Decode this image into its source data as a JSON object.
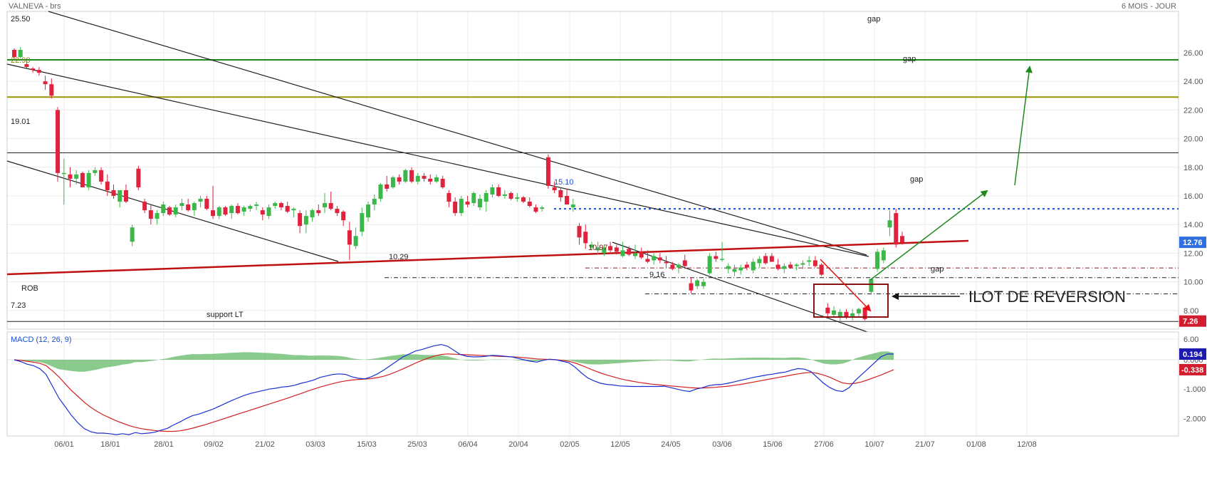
{
  "header": {
    "instrument": "VALNEVA - brs",
    "period": "6 MOIS - JOUR"
  },
  "chart_data": {
    "type": "candlestick",
    "price_axis": {
      "range": [
        4.0,
        26.0
      ],
      "ticks": [
        "26.00",
        "24.00",
        "22.00",
        "20.00",
        "18.00",
        "16.00",
        "14.00",
        "12.00",
        "10.00",
        "8.00",
        "6.00"
      ]
    },
    "date_axis": {
      "ticks": [
        "06/01",
        "18/01",
        "28/01",
        "09/02",
        "21/02",
        "03/03",
        "15/03",
        "25/03",
        "06/04",
        "20/04",
        "02/05",
        "12/05",
        "24/05",
        "03/06",
        "15/06",
        "27/06",
        "10/07",
        "21/07",
        "01/08",
        "12/08"
      ]
    },
    "last_price": "12.76",
    "support_price": "7.26",
    "candles": [
      [
        26.2,
        26.3,
        25.5,
        25.7
      ],
      [
        25.7,
        26.4,
        25.6,
        26.2
      ],
      [
        25.2,
        25.4,
        24.9,
        25.0
      ],
      [
        24.9,
        25.0,
        24.6,
        24.8
      ],
      [
        24.8,
        25.0,
        24.4,
        24.6
      ],
      [
        24.0,
        24.4,
        23.4,
        23.8
      ],
      [
        23.8,
        24.2,
        22.8,
        23.0
      ],
      [
        22.0,
        22.2,
        17.0,
        17.6
      ],
      [
        17.6,
        18.6,
        15.4,
        17.6
      ],
      [
        17.5,
        18.0,
        16.6,
        17.2
      ],
      [
        17.2,
        17.8,
        16.8,
        17.5
      ],
      [
        17.6,
        17.7,
        16.6,
        16.6
      ],
      [
        16.6,
        17.8,
        16.4,
        17.6
      ],
      [
        17.6,
        18.0,
        17.4,
        17.8
      ],
      [
        17.8,
        18.0,
        16.8,
        17.0
      ],
      [
        17.0,
        17.5,
        16.0,
        16.4
      ],
      [
        16.4,
        16.8,
        15.8,
        16.0
      ],
      [
        15.6,
        16.4,
        15.2,
        16.4
      ],
      [
        16.4,
        16.8,
        15.5,
        15.6
      ],
      [
        12.8,
        14.0,
        12.5,
        13.8
      ],
      [
        17.9,
        18.1,
        16.4,
        16.6
      ],
      [
        15.6,
        15.8,
        14.8,
        15.0
      ],
      [
        15.0,
        15.4,
        14.0,
        14.4
      ],
      [
        14.4,
        15.0,
        14.0,
        14.8
      ],
      [
        14.8,
        15.6,
        14.6,
        15.4
      ],
      [
        15.2,
        15.3,
        14.6,
        14.7
      ],
      [
        14.7,
        15.4,
        14.5,
        15.2
      ],
      [
        15.3,
        15.8,
        15.0,
        15.5
      ],
      [
        15.4,
        15.8,
        14.9,
        15.0
      ],
      [
        15.0,
        15.6,
        14.6,
        15.5
      ],
      [
        15.6,
        16.0,
        15.2,
        15.8
      ],
      [
        15.8,
        16.0,
        15.0,
        15.1
      ],
      [
        15.0,
        16.7,
        14.4,
        14.6
      ],
      [
        14.6,
        15.3,
        14.4,
        15.2
      ],
      [
        15.2,
        15.3,
        14.6,
        14.7
      ],
      [
        14.8,
        15.4,
        14.4,
        15.3
      ],
      [
        15.3,
        15.5,
        14.7,
        14.8
      ],
      [
        14.9,
        15.3,
        14.6,
        15.2
      ],
      [
        15.1,
        15.4,
        14.9,
        15.3
      ],
      [
        15.3,
        15.6,
        15.0,
        15.4
      ],
      [
        15.0,
        15.2,
        14.3,
        14.7
      ],
      [
        14.6,
        15.4,
        14.4,
        15.2
      ],
      [
        15.3,
        15.6,
        15.1,
        15.5
      ],
      [
        15.5,
        15.6,
        15.0,
        15.2
      ],
      [
        15.3,
        15.6,
        14.8,
        14.9
      ],
      [
        15.0,
        15.2,
        14.5,
        15.1
      ],
      [
        14.8,
        15.0,
        13.4,
        13.9
      ],
      [
        14.0,
        15.0,
        13.4,
        14.6
      ],
      [
        14.5,
        15.1,
        14.2,
        15.0
      ],
      [
        15.0,
        15.4,
        14.6,
        14.8
      ],
      [
        15.2,
        16.2,
        14.8,
        15.5
      ],
      [
        15.5,
        16.3,
        15.0,
        15.1
      ],
      [
        15.1,
        15.3,
        14.6,
        14.8
      ],
      [
        14.9,
        15.0,
        13.9,
        14.3
      ],
      [
        13.6,
        14.2,
        11.5,
        12.6
      ],
      [
        12.5,
        13.8,
        12.3,
        13.2
      ],
      [
        13.5,
        15.2,
        13.2,
        14.8
      ],
      [
        14.5,
        15.6,
        14.2,
        15.4
      ],
      [
        15.4,
        16.1,
        15.0,
        15.8
      ],
      [
        15.8,
        16.9,
        15.6,
        16.8
      ],
      [
        16.8,
        17.4,
        16.3,
        16.5
      ],
      [
        16.6,
        17.4,
        16.5,
        17.3
      ],
      [
        17.3,
        17.5,
        16.8,
        17.0
      ],
      [
        17.0,
        17.9,
        16.9,
        17.8
      ],
      [
        17.8,
        18.0,
        16.9,
        17.0
      ],
      [
        17.0,
        17.6,
        16.8,
        17.4
      ],
      [
        17.4,
        17.6,
        17.0,
        17.2
      ],
      [
        17.2,
        17.5,
        16.8,
        17.0
      ],
      [
        17.0,
        17.5,
        16.9,
        17.3
      ],
      [
        17.2,
        17.4,
        16.5,
        16.6
      ],
      [
        16.2,
        16.4,
        15.2,
        15.6
      ],
      [
        15.6,
        15.9,
        14.6,
        14.8
      ],
      [
        14.8,
        16.0,
        14.6,
        15.8
      ],
      [
        15.6,
        16.0,
        15.2,
        15.4
      ],
      [
        15.5,
        16.3,
        15.3,
        16.2
      ],
      [
        15.2,
        16.1,
        15.0,
        15.8
      ],
      [
        15.6,
        16.4,
        14.9,
        16.2
      ],
      [
        16.1,
        16.8,
        15.9,
        16.6
      ],
      [
        16.6,
        16.8,
        15.9,
        16.0
      ],
      [
        16.0,
        16.4,
        15.8,
        16.1
      ],
      [
        16.2,
        16.3,
        15.7,
        15.8
      ],
      [
        15.8,
        16.2,
        15.6,
        15.9
      ],
      [
        15.9,
        16.0,
        15.5,
        15.6
      ],
      [
        15.6,
        15.9,
        15.2,
        15.3
      ],
      [
        15.2,
        15.4,
        14.8,
        14.9
      ],
      [
        15.1,
        15.3,
        14.9,
        15.2
      ],
      [
        18.7,
        18.9,
        16.5,
        16.7
      ],
      [
        16.6,
        17.0,
        16.2,
        16.4
      ],
      [
        16.4,
        16.6,
        15.6,
        15.9
      ],
      [
        16.0,
        16.5,
        15.4,
        15.4
      ],
      [
        15.2,
        15.8,
        14.9,
        15.4
      ],
      [
        13.9,
        14.1,
        12.6,
        13.1
      ],
      [
        13.5,
        14.0,
        12.3,
        12.7
      ],
      [
        12.4,
        12.8,
        12.2,
        12.6
      ],
      [
        12.2,
        12.8,
        11.9,
        12.4
      ],
      [
        12.0,
        12.6,
        11.8,
        12.4
      ],
      [
        12.5,
        12.8,
        12.0,
        12.2
      ],
      [
        12.4,
        12.6,
        11.9,
        12.1
      ],
      [
        11.8,
        12.8,
        11.7,
        12.2
      ],
      [
        12.3,
        12.5,
        11.8,
        11.9
      ],
      [
        11.8,
        12.6,
        11.6,
        12.0
      ],
      [
        12.1,
        12.4,
        11.6,
        11.7
      ],
      [
        11.6,
        12.2,
        11.3,
        11.4
      ],
      [
        11.5,
        12.0,
        11.2,
        11.8
      ],
      [
        11.7,
        12.0,
        11.3,
        11.5
      ],
      [
        11.4,
        11.8,
        11.0,
        11.3
      ],
      [
        11.2,
        11.4,
        10.8,
        10.9
      ],
      [
        11.0,
        11.3,
        10.6,
        11.2
      ],
      [
        11.5,
        11.9,
        10.9,
        11.1
      ],
      [
        9.9,
        10.3,
        9.2,
        9.4
      ],
      [
        9.7,
        10.2,
        9.5,
        10.1
      ],
      [
        9.7,
        10.2,
        9.5,
        10.0
      ],
      [
        10.6,
        12.0,
        10.5,
        11.8
      ],
      [
        11.8,
        12.1,
        11.4,
        11.6
      ],
      [
        11.6,
        12.8,
        11.4,
        11.6
      ],
      [
        10.9,
        11.3,
        10.6,
        11.1
      ],
      [
        10.7,
        11.2,
        10.4,
        10.9
      ],
      [
        10.8,
        11.2,
        10.5,
        11.0
      ],
      [
        11.2,
        11.4,
        10.8,
        11.0
      ],
      [
        10.8,
        11.6,
        10.6,
        11.4
      ],
      [
        11.3,
        11.8,
        11.0,
        11.6
      ],
      [
        11.8,
        12.0,
        11.2,
        11.3
      ],
      [
        11.8,
        12.0,
        11.4,
        11.4
      ],
      [
        11.2,
        11.6,
        10.8,
        10.9
      ],
      [
        10.9,
        11.3,
        10.6,
        11.1
      ],
      [
        11.2,
        11.4,
        10.9,
        11.0
      ],
      [
        11.1,
        11.3,
        10.8,
        11.2
      ],
      [
        11.2,
        11.5,
        10.9,
        11.3
      ],
      [
        11.4,
        11.8,
        11.1,
        11.5
      ],
      [
        11.5,
        11.8,
        11.0,
        11.1
      ],
      [
        11.2,
        11.3,
        10.4,
        10.5
      ],
      [
        8.2,
        8.5,
        7.5,
        7.8
      ],
      [
        7.7,
        8.3,
        7.5,
        8.0
      ],
      [
        7.5,
        8.1,
        7.2,
        7.9
      ],
      [
        7.9,
        8.1,
        7.4,
        7.5
      ],
      [
        7.6,
        8.1,
        7.3,
        7.8
      ],
      [
        7.8,
        8.2,
        7.6,
        8.1
      ],
      [
        8.2,
        8.3,
        7.3,
        7.4
      ],
      [
        9.3,
        10.2,
        9.1,
        10.2
      ],
      [
        10.9,
        12.3,
        10.7,
        12.1
      ],
      [
        11.5,
        12.4,
        11.3,
        12.2
      ],
      [
        13.8,
        15.0,
        13.2,
        14.3
      ],
      [
        14.8,
        15.1,
        12.4,
        12.6
      ],
      [
        13.2,
        13.5,
        12.6,
        12.76
      ]
    ],
    "annotations": {
      "levels": [
        {
          "label": "25.50",
          "value": 25.5
        },
        {
          "label": "22.90",
          "value": 22.9
        },
        {
          "label": "19.01",
          "value": 19.01
        },
        {
          "label": "15.10",
          "value": 15.1
        },
        {
          "label": "10.97",
          "value": 10.97
        },
        {
          "label": "10.29",
          "value": 10.29
        },
        {
          "label": "9.16",
          "value": 9.16
        },
        {
          "label": "7.23",
          "value": 7.23
        }
      ],
      "gap_labels": [
        "gap",
        "gap",
        "gap",
        "gap"
      ],
      "rob_label": "ROB",
      "support_label": "support LT",
      "island_label": "ILOT DE REVERSION"
    },
    "macd": {
      "title": "MACD (12, 26, 9)",
      "axis_ticks": [
        "0.000",
        "-1.000",
        "-2.000"
      ],
      "range": [
        -2.6,
        0.65
      ],
      "value": "0.194",
      "signal_value": "-0.338",
      "macd_line": [
        0.0,
        -0.06,
        -0.15,
        -0.2,
        -0.3,
        -0.5,
        -0.9,
        -1.3,
        -1.6,
        -1.9,
        -2.15,
        -2.35,
        -2.45,
        -2.5,
        -2.5,
        -2.52,
        -2.55,
        -2.52,
        -2.55,
        -2.48,
        -2.52,
        -2.5,
        -2.47,
        -2.4,
        -2.34,
        -2.22,
        -2.12,
        -2.0,
        -1.9,
        -1.85,
        -1.77,
        -1.7,
        -1.6,
        -1.5,
        -1.4,
        -1.31,
        -1.22,
        -1.15,
        -1.1,
        -1.05,
        -1.0,
        -0.97,
        -0.93,
        -0.91,
        -0.87,
        -0.8,
        -0.75,
        -0.69,
        -0.6,
        -0.55,
        -0.5,
        -0.48,
        -0.5,
        -0.58,
        -0.63,
        -0.65,
        -0.58,
        -0.48,
        -0.35,
        -0.2,
        -0.05,
        0.1,
        0.2,
        0.3,
        0.35,
        0.42,
        0.48,
        0.52,
        0.46,
        0.32,
        0.18,
        0.12,
        0.1,
        0.1,
        0.12,
        0.15,
        0.14,
        0.12,
        0.1,
        0.05,
        0.0,
        -0.05,
        -0.08,
        -0.02,
        0.02,
        0.0,
        -0.05,
        -0.1,
        -0.25,
        -0.45,
        -0.62,
        -0.72,
        -0.8,
        -0.84,
        -0.86,
        -0.89,
        -0.9,
        -0.91,
        -0.91,
        -0.91,
        -0.91,
        -0.91,
        -0.9,
        -0.95,
        -1.0,
        -1.05,
        -1.08,
        -1.0,
        -0.95,
        -0.88,
        -0.85,
        -0.84,
        -0.8,
        -0.75,
        -0.7,
        -0.65,
        -0.6,
        -0.56,
        -0.52,
        -0.49,
        -0.45,
        -0.42,
        -0.35,
        -0.3,
        -0.32,
        -0.4,
        -0.6,
        -0.8,
        -0.95,
        -1.05,
        -1.08,
        -0.95,
        -0.7,
        -0.5,
        -0.3,
        -0.1,
        0.1,
        0.2,
        0.194
      ],
      "signal_line": [
        0.0,
        -0.02,
        -0.05,
        -0.08,
        -0.12,
        -0.2,
        -0.38,
        -0.58,
        -0.82,
        -1.05,
        -1.25,
        -1.45,
        -1.62,
        -1.76,
        -1.88,
        -1.98,
        -2.08,
        -2.16,
        -2.24,
        -2.3,
        -2.35,
        -2.38,
        -2.41,
        -2.43,
        -2.44,
        -2.44,
        -2.42,
        -2.38,
        -2.33,
        -2.27,
        -2.21,
        -2.14,
        -2.07,
        -2.0,
        -1.93,
        -1.86,
        -1.79,
        -1.72,
        -1.65,
        -1.58,
        -1.51,
        -1.44,
        -1.37,
        -1.3,
        -1.22,
        -1.15,
        -1.07,
        -1.0,
        -0.93,
        -0.87,
        -0.81,
        -0.76,
        -0.72,
        -0.69,
        -0.67,
        -0.66,
        -0.64,
        -0.61,
        -0.56,
        -0.49,
        -0.4,
        -0.31,
        -0.21,
        -0.11,
        -0.02,
        0.06,
        0.13,
        0.18,
        0.2,
        0.19,
        0.18,
        0.17,
        0.16,
        0.15,
        0.14,
        0.13,
        0.12,
        0.11,
        0.1,
        0.09,
        0.07,
        0.05,
        0.03,
        0.02,
        0.01,
        0.0,
        -0.02,
        -0.05,
        -0.11,
        -0.19,
        -0.28,
        -0.37,
        -0.45,
        -0.52,
        -0.58,
        -0.64,
        -0.69,
        -0.73,
        -0.77,
        -0.8,
        -0.83,
        -0.85,
        -0.87,
        -0.89,
        -0.91,
        -0.93,
        -0.95,
        -0.96,
        -0.96,
        -0.95,
        -0.94,
        -0.92,
        -0.9,
        -0.87,
        -0.84,
        -0.8,
        -0.76,
        -0.72,
        -0.68,
        -0.64,
        -0.6,
        -0.56,
        -0.52,
        -0.48,
        -0.45,
        -0.43,
        -0.46,
        -0.52,
        -0.6,
        -0.7,
        -0.79,
        -0.82,
        -0.8,
        -0.75,
        -0.68,
        -0.6,
        -0.52,
        -0.43,
        -0.338
      ]
    }
  }
}
